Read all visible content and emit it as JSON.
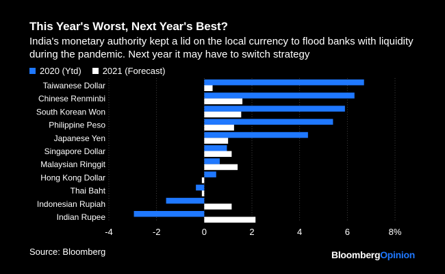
{
  "chart_data": {
    "type": "bar",
    "orientation": "horizontal",
    "title": "This Year's Worst, Next Year's Best?",
    "subtitle": "India's monetary authority kept a lid on the local currency to flood banks with liquidity during the pandemic. Next year it may have to switch strategy",
    "categories": [
      "Taiwanese Dollar",
      "Chinese Renminbi",
      "South Korean Won",
      "Philippine Peso",
      "Japanese Yen",
      "Singapore Dollar",
      "Malaysian Ringgit",
      "Hong Kong Dollar",
      "Thai Baht",
      "Indonesian Rupiah",
      "Indian Rupee"
    ],
    "series": [
      {
        "name": "2020 (Ytd)",
        "color": "#1f78ff",
        "values": [
          6.7,
          6.3,
          5.9,
          5.4,
          4.35,
          0.95,
          0.65,
          0.5,
          -0.35,
          -1.6,
          -2.95
        ]
      },
      {
        "name": "2021 (Forecast)",
        "color": "#ffffff",
        "values": [
          0.35,
          1.6,
          1.55,
          1.25,
          1.0,
          1.15,
          1.4,
          -0.1,
          -0.1,
          1.15,
          2.15
        ]
      }
    ],
    "xticks": [
      "-4",
      "-2",
      "0",
      "2",
      "4",
      "6",
      "8%"
    ],
    "xlim": [
      -4,
      8
    ],
    "grid": true,
    "legend": "top-left"
  },
  "source": "Source: Bloomberg",
  "brand": {
    "main": "Bloomberg",
    "accent": "Opinion"
  }
}
